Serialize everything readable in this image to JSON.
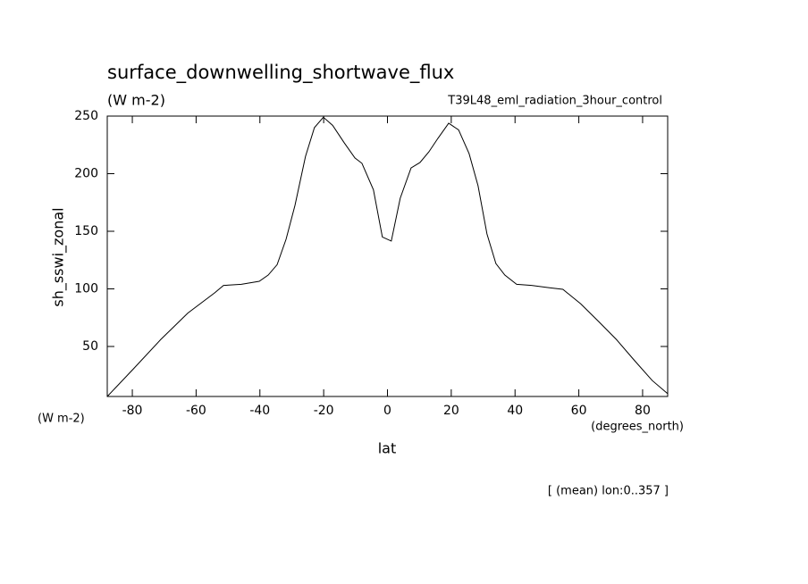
{
  "chart_data": {
    "type": "line",
    "title": "surface_downwelling_shortwave_flux",
    "subtitle": "(W m-2)",
    "dataset": "T39L48_eml_radiation_3hour_control",
    "ylabel": "sh_sswi_zonal",
    "yunits": "(W m-2)",
    "xunits": "(degrees_north)",
    "xlabel": "lat",
    "footnote": "[ (mean) lon:0..357 ]",
    "x": [
      -87.86,
      -79.5,
      -71.1,
      -62.6,
      -54.2,
      -51.4,
      -45.8,
      -40.2,
      -37.4,
      -34.6,
      -31.8,
      -29.0,
      -25.7,
      -22.9,
      -20.1,
      -17.2,
      -13.6,
      -10.2,
      -8.0,
      -4.4,
      -1.6,
      1.2,
      4.0,
      7.4,
      10.2,
      13.0,
      15.8,
      19.2,
      22.3,
      25.6,
      28.4,
      31.2,
      34.0,
      36.8,
      40.5,
      45.2,
      50.8,
      55.0,
      60.6,
      66.2,
      71.8,
      77.4,
      83.0,
      87.86
    ],
    "series": [
      {
        "name": "sh_sswi_zonal",
        "color": "#000000",
        "values": [
          6.6,
          31,
          56,
          79,
          96.5,
          103,
          104,
          106.6,
          112,
          121,
          143,
          172.5,
          215,
          240,
          249,
          242,
          227,
          213.6,
          209,
          186,
          145,
          141.5,
          178.7,
          205,
          209.7,
          219,
          230.6,
          243.8,
          238,
          217.4,
          189.5,
          147.7,
          122,
          112,
          104,
          103,
          101,
          99.6,
          87,
          71.7,
          56,
          38,
          20.5,
          9
        ]
      }
    ],
    "xlim": [
      -87.86,
      87.86
    ],
    "ylim": [
      6.6,
      250
    ],
    "xticks": [
      -80,
      -60,
      -40,
      -20,
      0,
      20,
      40,
      60,
      80
    ],
    "yticks": [
      50,
      100,
      150,
      200,
      250
    ]
  }
}
